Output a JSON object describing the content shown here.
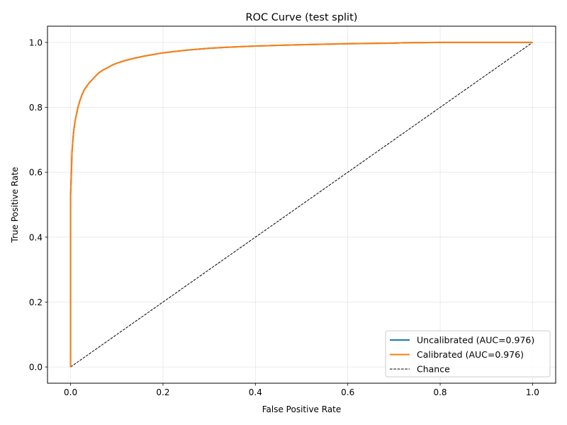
{
  "chart_data": {
    "type": "line",
    "title": "ROC Curve (test split)",
    "xlabel": "False Positive Rate",
    "ylabel": "True Positive Rate",
    "xlim": [
      -0.05,
      1.05
    ],
    "ylim": [
      -0.05,
      1.05
    ],
    "xticks": [
      "0.0",
      "0.2",
      "0.4",
      "0.6",
      "0.8",
      "1.0"
    ],
    "yticks": [
      "0.0",
      "0.2",
      "0.4",
      "0.6",
      "0.8",
      "1.0"
    ],
    "grid": true,
    "legend_position": "bottom-right",
    "series": [
      {
        "name": "Uncalibrated (AUC=0.976)",
        "color": "#1f77b4",
        "style": "solid",
        "x": [
          0.0,
          0.0,
          0.002,
          0.003,
          0.005,
          0.007,
          0.01,
          0.013,
          0.016,
          0.02,
          0.025,
          0.03,
          0.035,
          0.04,
          0.05,
          0.06,
          0.07,
          0.08,
          0.09,
          0.1,
          0.12,
          0.14,
          0.16,
          0.18,
          0.2,
          0.25,
          0.3,
          0.35,
          0.4,
          0.45,
          0.5,
          0.6,
          0.7,
          0.72,
          0.8,
          0.9,
          1.0
        ],
        "y": [
          0.0,
          0.53,
          0.61,
          0.66,
          0.7,
          0.73,
          0.76,
          0.78,
          0.8,
          0.82,
          0.84,
          0.855,
          0.865,
          0.875,
          0.89,
          0.905,
          0.915,
          0.922,
          0.93,
          0.936,
          0.945,
          0.952,
          0.958,
          0.963,
          0.968,
          0.976,
          0.982,
          0.986,
          0.989,
          0.991,
          0.993,
          0.996,
          0.998,
          0.999,
          1.0,
          1.0,
          1.0
        ]
      },
      {
        "name": "Calibrated (AUC=0.976)",
        "color": "#ff7f0e",
        "style": "solid",
        "x": [
          0.0,
          0.0,
          0.002,
          0.003,
          0.005,
          0.007,
          0.01,
          0.013,
          0.016,
          0.02,
          0.025,
          0.03,
          0.035,
          0.04,
          0.05,
          0.06,
          0.07,
          0.08,
          0.09,
          0.1,
          0.12,
          0.14,
          0.16,
          0.18,
          0.2,
          0.25,
          0.3,
          0.35,
          0.4,
          0.45,
          0.5,
          0.6,
          0.7,
          0.72,
          0.8,
          0.9,
          1.0
        ],
        "y": [
          0.0,
          0.53,
          0.61,
          0.66,
          0.7,
          0.73,
          0.76,
          0.78,
          0.8,
          0.82,
          0.84,
          0.855,
          0.865,
          0.875,
          0.89,
          0.905,
          0.915,
          0.922,
          0.93,
          0.936,
          0.945,
          0.952,
          0.958,
          0.963,
          0.968,
          0.976,
          0.982,
          0.986,
          0.989,
          0.991,
          0.993,
          0.996,
          0.998,
          0.999,
          1.0,
          1.0,
          1.0
        ]
      },
      {
        "name": "Chance",
        "color": "#000000",
        "style": "dashed",
        "x": [
          0.0,
          1.0
        ],
        "y": [
          0.0,
          1.0
        ]
      }
    ]
  }
}
